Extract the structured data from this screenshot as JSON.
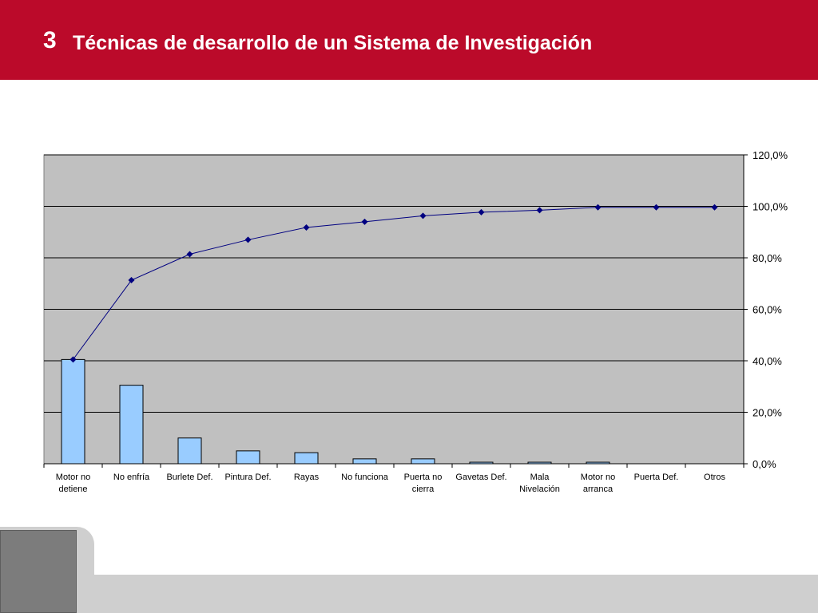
{
  "slide": {
    "number": "3",
    "title": "Técnicas de desarrollo de un Sistema de Investigación"
  },
  "colors": {
    "header_bg": "#bb0a2a",
    "plot_bg": "#c0c0c0",
    "bar_fill": "#99ccff",
    "line_color": "#000080"
  },
  "chart_data": {
    "type": "bar",
    "title": "",
    "xlabel": "",
    "ylabel": "",
    "categories": [
      "Motor no detiene",
      "No enfría",
      "Burlete Def.",
      "Pintura Def.",
      "Rayas",
      "No funciona",
      "Puerta no cierra",
      "Gavetas Def.",
      "Mala Nivelación",
      "Motor no arranca",
      "Puerta Def.",
      "Otros"
    ],
    "category_lines": [
      [
        "Motor no",
        "detiene"
      ],
      [
        "No enfría"
      ],
      [
        "Burlete Def."
      ],
      [
        "Pintura Def."
      ],
      [
        "Rayas"
      ],
      [
        "No funciona"
      ],
      [
        "Puerta no",
        "cierra"
      ],
      [
        "Gavetas Def."
      ],
      [
        "Mala",
        "Nivelación"
      ],
      [
        "Motor no",
        "arranca"
      ],
      [
        "Puerta Def."
      ],
      [
        "Otros"
      ]
    ],
    "series": [
      {
        "type": "bar",
        "values": [
          40.5,
          30.5,
          10.0,
          5.0,
          4.3,
          1.9,
          1.9,
          0.6,
          0.6,
          0.6,
          0.0,
          0.0
        ]
      },
      {
        "type": "line",
        "values": [
          40.5,
          71.3,
          81.4,
          87.0,
          91.8,
          94.0,
          96.3,
          97.7,
          98.5,
          99.6,
          99.6,
          99.6
        ]
      }
    ],
    "y_axis": {
      "position": "right",
      "ylim": [
        0,
        120
      ],
      "ticks": [
        "0,0%",
        "20,0%",
        "40,0%",
        "60,0%",
        "80,0%",
        "100,0%",
        "120,0%"
      ]
    },
    "grid": true,
    "legend": "none"
  }
}
